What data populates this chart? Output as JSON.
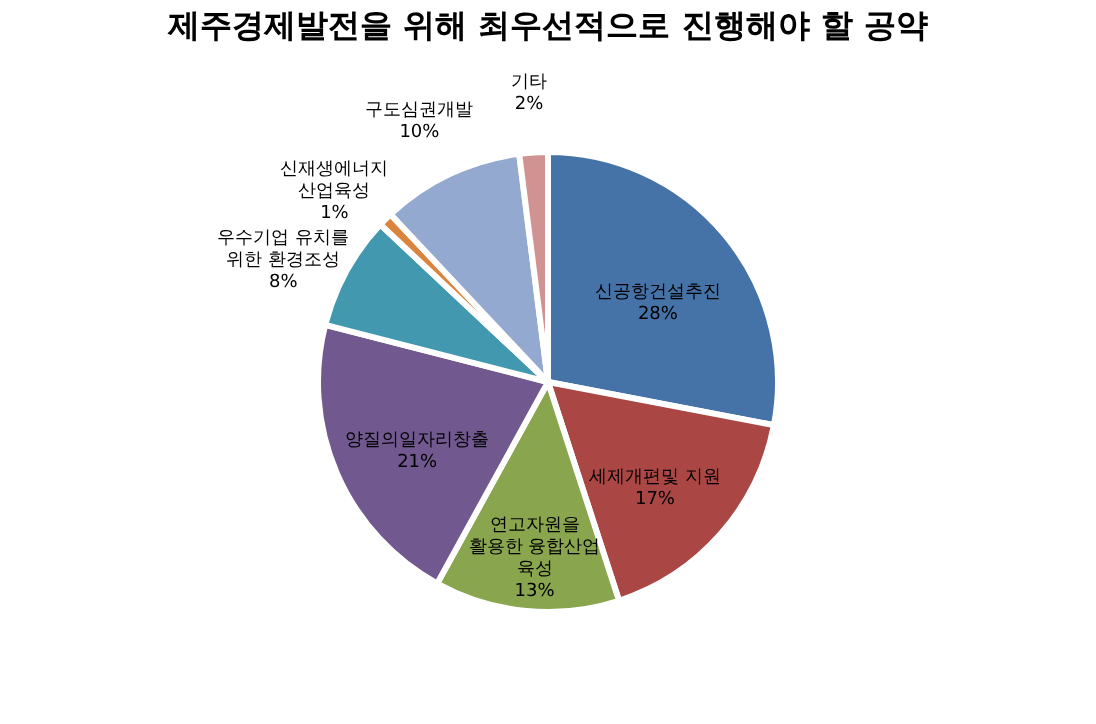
{
  "chart_data": {
    "type": "pie",
    "title": "제주경제발전을 위해 최우선적으로 진행해야 할 공약",
    "categories": [
      "신공항건설추진",
      "세제개편및 지원",
      "연고자원을 활용한 융합산업 육성",
      "양질의일자리창출",
      "우수기업 유치를 위한 환경조성",
      "신재생에너지 산업육성",
      "구도심권개발",
      "기타"
    ],
    "values": [
      28,
      17,
      13,
      21,
      8,
      1,
      10,
      2
    ],
    "colors": [
      "#4572a7",
      "#aa4643",
      "#89a54e",
      "#71588f",
      "#4198af",
      "#db843d",
      "#93a9cf",
      "#d19392"
    ],
    "value_labels": [
      "28%",
      "17%",
      "13%",
      "21%",
      "8%",
      "1%",
      "10%",
      "2%"
    ],
    "data_labels": true,
    "legend": false
  }
}
